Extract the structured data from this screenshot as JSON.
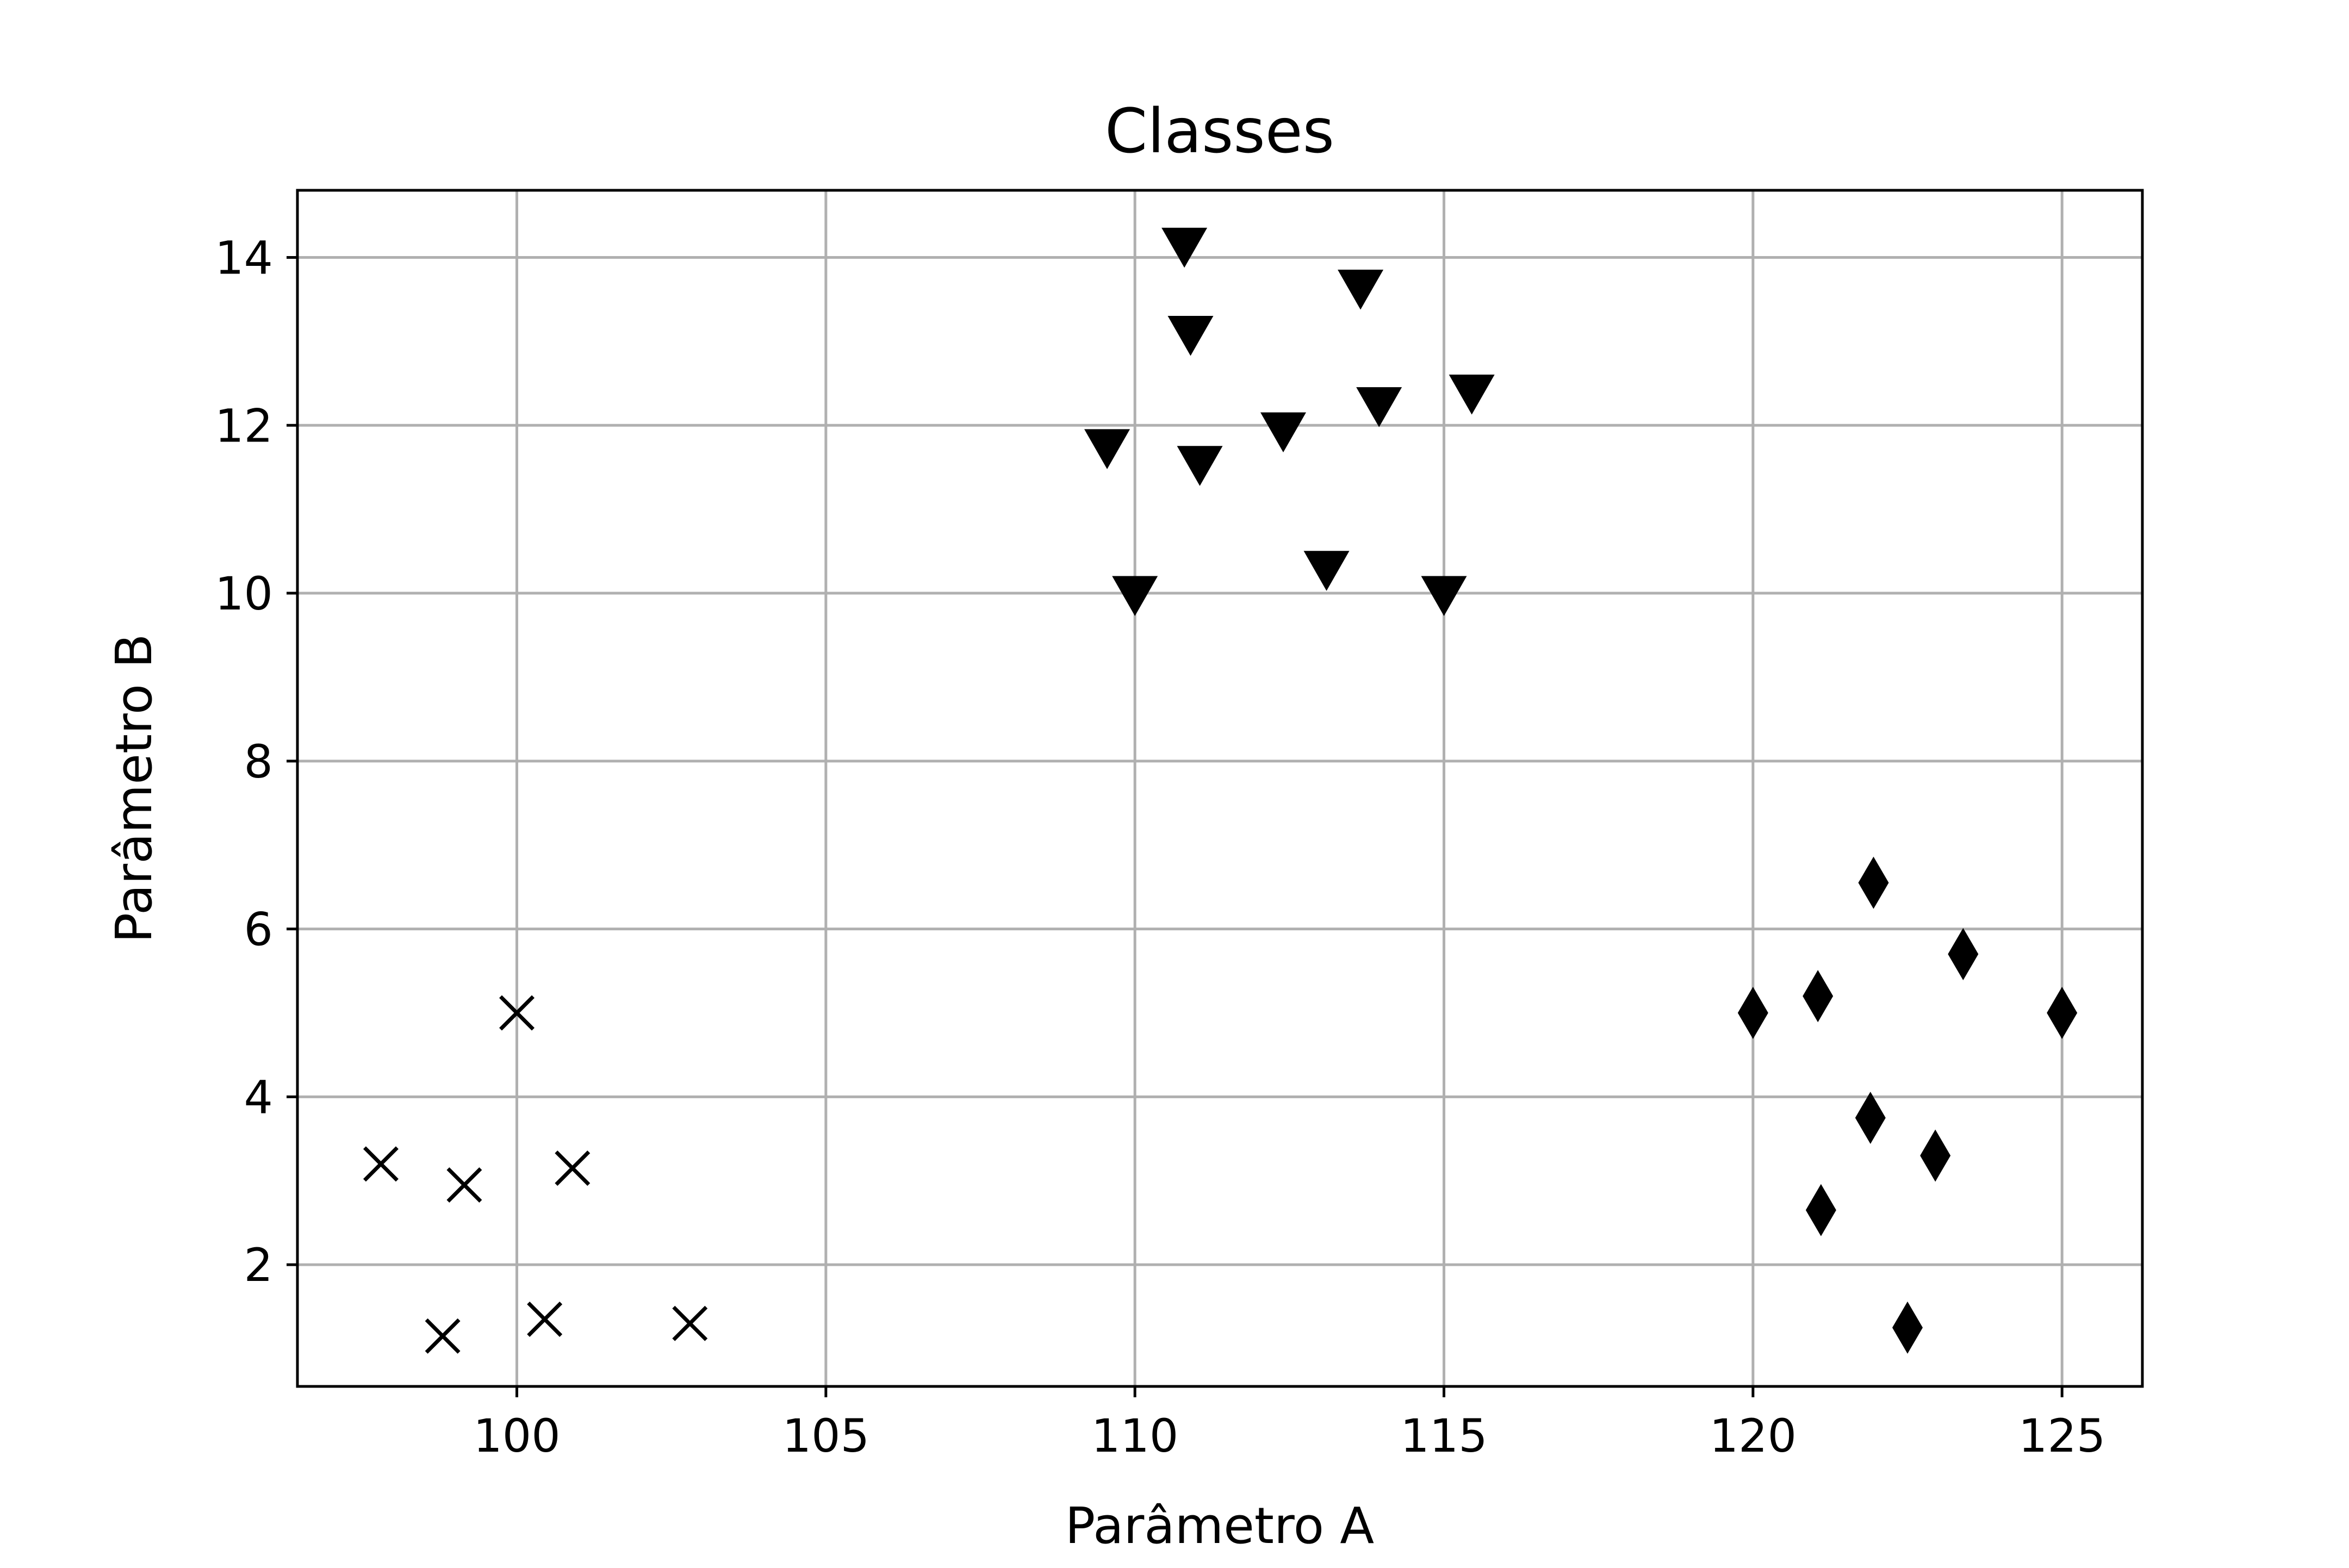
{
  "chart_data": {
    "type": "scatter",
    "title": "Classes",
    "xlabel": "Parâmetro A",
    "ylabel": "Parâmetro B",
    "xlim": [
      96.45,
      126.3
    ],
    "ylim": [
      0.55,
      14.8
    ],
    "xticks": [
      100,
      105,
      110,
      115,
      120,
      125
    ],
    "yticks": [
      2,
      4,
      6,
      8,
      10,
      12,
      14
    ],
    "grid": true,
    "series": [
      {
        "marker": "x",
        "x": [
          97.8,
          99.15,
          100.0,
          100.9,
          98.8,
          100.45,
          102.8
        ],
        "y": [
          3.2,
          2.95,
          5.0,
          3.15,
          1.15,
          1.35,
          1.3
        ]
      },
      {
        "marker": "triangle-down",
        "x": [
          110.8,
          110.9,
          113.65,
          109.55,
          111.05,
          112.4,
          113.95,
          115.45,
          110.0,
          113.1,
          115.0
        ],
        "y": [
          14.15,
          13.1,
          13.65,
          11.75,
          11.55,
          11.95,
          12.25,
          12.4,
          10.0,
          10.3,
          10.0
        ]
      },
      {
        "marker": "diamond",
        "x": [
          121.95,
          123.4,
          120.0,
          121.05,
          125.0,
          121.9,
          122.95,
          121.1,
          122.5
        ],
        "y": [
          6.55,
          5.7,
          5.0,
          5.2,
          5.0,
          3.75,
          3.3,
          2.65,
          1.25
        ]
      }
    ]
  }
}
